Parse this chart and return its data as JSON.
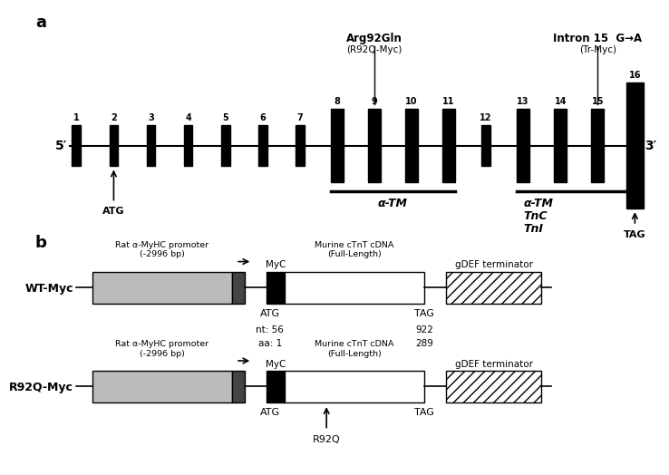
{
  "fig_width": 7.0,
  "fig_height": 5.05,
  "bg_color": "#ffffff",
  "panel_a": {
    "n_exons": 16,
    "exon_labels": [
      "1",
      "2",
      "3",
      "4",
      "5",
      "6",
      "7",
      "8",
      "9",
      "10",
      "11",
      "12",
      "13",
      "14",
      "15",
      "16"
    ],
    "annotation1_text": "Arg92Gln",
    "annotation1_sub": "(R92Q-Myc)",
    "annotation1_exon_idx": 8,
    "annotation2_text": "Intron 15  G→A",
    "annotation2_sub": "(Tr-Myc)",
    "annotation2_exon_idx": 14,
    "five_prime": "5′",
    "three_prime": "3′",
    "atg_label": "ATG",
    "tag_label": "TAG",
    "bar1_label": "α-TM",
    "bar2_labels": [
      "α-TM",
      "TnC",
      "TnI"
    ]
  },
  "panel_b": {
    "construct1_name": "WT-Myc",
    "construct2_name": "R92Q-Myc",
    "promoter_label": "Rat α-MyHC promoter\n(-2996 bp)",
    "myc_label": "MyC",
    "cdna_label": "Murine cTnT cDNA\n(Full-Length)",
    "terminator_label": "gDEF terminator",
    "atg_label": "ATG",
    "tag_label": "TAG",
    "nt_label": "nt: 56",
    "aa_label": "aa: 1",
    "nt_right": "922",
    "aa_right": "289",
    "r92q_label": "R92Q"
  }
}
